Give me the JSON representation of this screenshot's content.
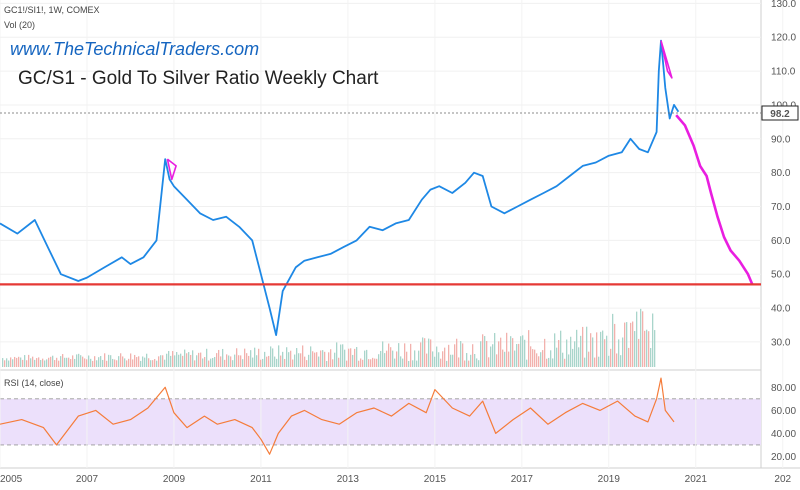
{
  "header": {
    "symbol": "GC1!/SI1!, 1W, COMEX",
    "volume": "Vol (20)",
    "website": "www.TheTechnicalTraders.com",
    "title": "GC/S1 - Gold To Silver Ratio Weekly Chart"
  },
  "price_axis": {
    "ticks": [
      "130.0",
      "120.0",
      "110.0",
      "100.0",
      "90.0",
      "80.0",
      "70.0",
      "60.0",
      "50.0",
      "40.0",
      "30.0"
    ],
    "last_price": "98.2"
  },
  "rsi_panel": {
    "label": "RSI (14, close)",
    "ticks": [
      "80.00",
      "60.00",
      "40.00",
      "20.00"
    ]
  },
  "time_axis": {
    "ticks": [
      "2005",
      "2007",
      "2009",
      "2011",
      "2013",
      "2015",
      "2017",
      "2019",
      "2021",
      "202"
    ]
  },
  "colors": {
    "price_line": "#1e88e5",
    "projection": "#e91ee0",
    "support_line": "#e53935",
    "rsi_line": "#f57c3a",
    "rsi_band": "#e9d5ff",
    "volume_up": "#a9d5cb",
    "volume_down": "#f2b1ad"
  },
  "chart_data": [
    {
      "type": "line",
      "name": "price",
      "x": [
        2005.0,
        2005.4,
        2005.8,
        2006.1,
        2006.4,
        2006.8,
        2007.0,
        2007.4,
        2007.8,
        2008.0,
        2008.3,
        2008.6,
        2008.8,
        2008.9,
        2009.0,
        2009.3,
        2009.6,
        2009.9,
        2010.2,
        2010.5,
        2010.8,
        2011.0,
        2011.2,
        2011.35,
        2011.5,
        2011.8,
        2012.0,
        2012.3,
        2012.6,
        2012.9,
        2013.2,
        2013.5,
        2013.8,
        2014.1,
        2014.4,
        2014.7,
        2014.9,
        2015.1,
        2015.4,
        2015.7,
        2015.9,
        2016.1,
        2016.3,
        2016.6,
        2016.9,
        2017.2,
        2017.5,
        2017.8,
        2018.1,
        2018.4,
        2018.7,
        2019.0,
        2019.3,
        2019.5,
        2019.7,
        2019.9,
        2020.1,
        2020.15,
        2020.2,
        2020.25,
        2020.3,
        2020.4,
        2020.5,
        2020.6
      ],
      "y": [
        65,
        62,
        66,
        58,
        50,
        48,
        49,
        52,
        55,
        53,
        55,
        60,
        84,
        78,
        76,
        72,
        68,
        66,
        67,
        64,
        60,
        50,
        40,
        32,
        45,
        52,
        54,
        55,
        56,
        58,
        60,
        64,
        63,
        65,
        66,
        72,
        75,
        76,
        74,
        77,
        80,
        79,
        70,
        68,
        70,
        72,
        74,
        76,
        79,
        82,
        83,
        85,
        86,
        90,
        87,
        86,
        92,
        110,
        119,
        112,
        105,
        96,
        100,
        98
      ],
      "xlim": [
        2005,
        2022.5
      ],
      "ylim": [
        22,
        131
      ]
    },
    {
      "type": "line",
      "name": "projection",
      "x": [
        2020.55,
        2020.75,
        2020.95,
        2021.1,
        2021.25,
        2021.35,
        2021.5,
        2021.65,
        2021.8,
        2022.0,
        2022.2,
        2022.3
      ],
      "y": [
        97,
        94,
        88,
        82,
        79,
        74,
        67,
        61,
        57,
        54,
        50,
        47
      ],
      "xlim": [
        2005,
        2022.5
      ],
      "ylim": [
        22,
        131
      ]
    },
    {
      "type": "line",
      "name": "triangle-2008",
      "x": [
        2008.85,
        2009.05,
        2008.95,
        2008.85
      ],
      "y": [
        84,
        82,
        78,
        84
      ],
      "xlim": [
        2005,
        2022.5
      ],
      "ylim": [
        22,
        131
      ]
    },
    {
      "type": "line",
      "name": "triangle-2020",
      "x": [
        2020.2,
        2020.45,
        2020.35,
        2020.2
      ],
      "y": [
        119,
        108,
        110,
        119
      ],
      "xlim": [
        2005,
        2022.5
      ],
      "ylim": [
        22,
        131
      ]
    },
    {
      "type": "line",
      "name": "support",
      "x": [
        2005,
        2022.5
      ],
      "y": [
        47,
        47
      ],
      "xlim": [
        2005,
        2022.5
      ],
      "ylim": [
        22,
        131
      ]
    },
    {
      "type": "line",
      "name": "rsi",
      "x": [
        2005.0,
        2005.5,
        2006.0,
        2006.3,
        2006.8,
        2007.2,
        2007.6,
        2008.0,
        2008.4,
        2008.8,
        2009.0,
        2009.3,
        2009.7,
        2010.0,
        2010.4,
        2010.8,
        2011.0,
        2011.2,
        2011.4,
        2011.7,
        2012.0,
        2012.4,
        2012.8,
        2013.2,
        2013.6,
        2014.0,
        2014.4,
        2014.8,
        2015.0,
        2015.4,
        2015.8,
        2016.1,
        2016.4,
        2016.8,
        2017.2,
        2017.6,
        2018.0,
        2018.4,
        2018.8,
        2019.2,
        2019.6,
        2019.9,
        2020.1,
        2020.2,
        2020.3,
        2020.5
      ],
      "y": [
        48,
        52,
        45,
        30,
        55,
        60,
        48,
        52,
        62,
        80,
        58,
        45,
        55,
        48,
        52,
        45,
        35,
        22,
        40,
        55,
        60,
        52,
        48,
        58,
        62,
        55,
        66,
        58,
        78,
        62,
        55,
        68,
        40,
        52,
        62,
        48,
        58,
        66,
        60,
        68,
        55,
        50,
        70,
        88,
        60,
        50
      ],
      "xlim": [
        2005,
        2022.5
      ],
      "ylim": [
        10,
        95
      ]
    }
  ]
}
